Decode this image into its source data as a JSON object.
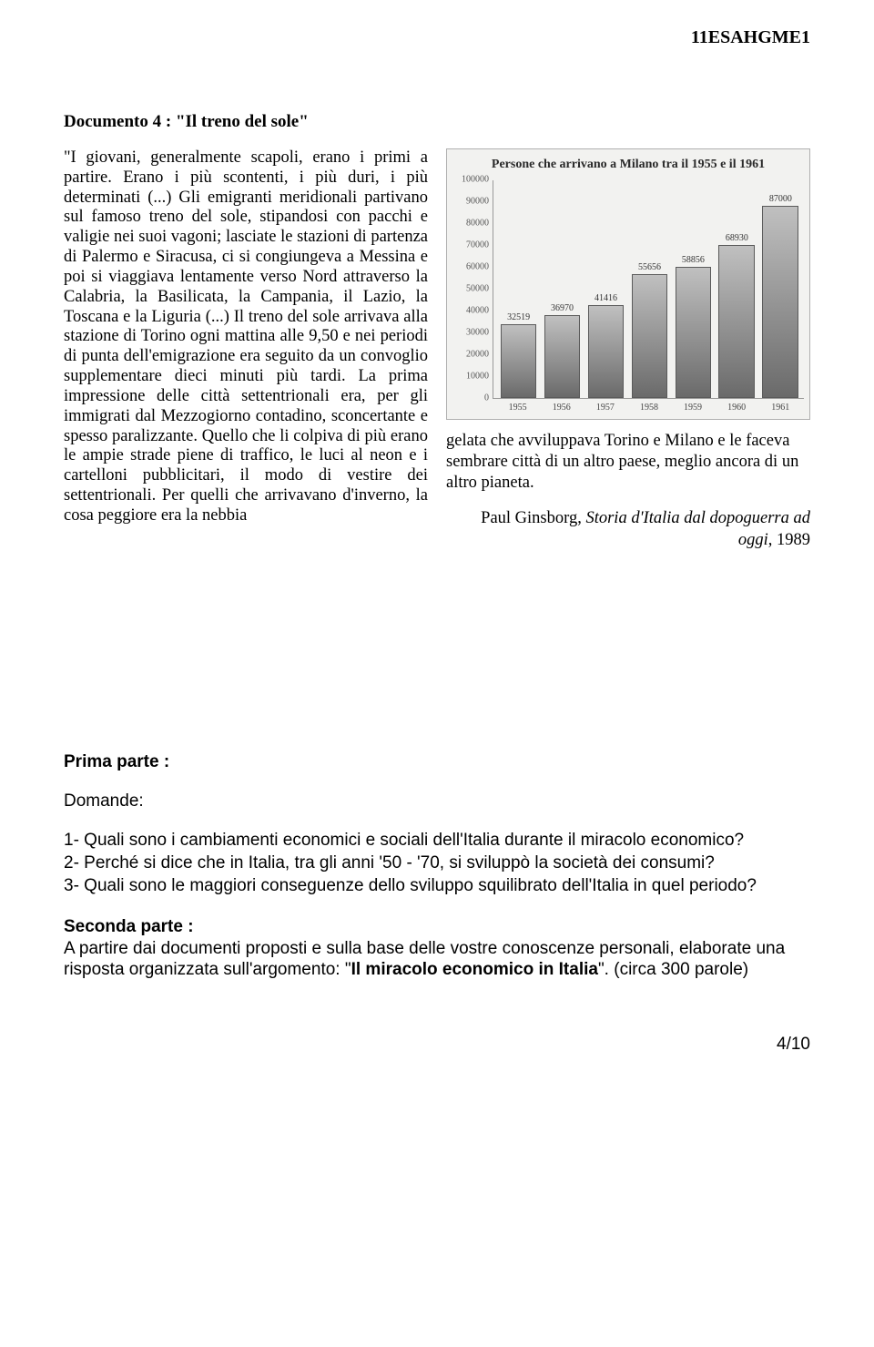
{
  "header_code": "11ESAHGME1",
  "doc_title_prefix": "Documento 4 : ",
  "doc_title_quote": "\"Il treno del sole\"",
  "body_left": "\"I giovani, generalmente scapoli, erano i primi a partire. Erano i più scontenti, i più duri, i più determinati (...) Gli emigranti meridionali partivano sul famoso treno del sole, stipandosi con pacchi e valigie nei suoi vagoni; lasciate le stazioni di partenza di Palermo e Siracusa, ci si congiungeva a Messina e poi si viaggiava lentamente verso Nord attraverso la Calabria, la Basilicata, la Campania, il Lazio, la Toscana e la Liguria (...) Il treno del sole arrivava alla stazione di Torino ogni mattina alle 9,50 e nei periodi di punta dell'emigrazione era seguito da un convoglio supplementare dieci minuti più tardi. La prima impressione delle città settentrionali era, per gli immigrati dal Mezzogiorno contadino, sconcertante e spesso paralizzante. Quello che li colpiva di più erano le ampie strade piene di traffico, le luci al neon e i cartelloni pubblicitari, il modo di vestire dei settentrionali. Per quelli che arrivavano d'inverno, la cosa peggiore era la nebbia",
  "body_right": "gelata che avviluppava Torino e Milano e le faceva sembrare città di un altro paese, meglio ancora di un altro pianeta.",
  "source_author": "Paul Ginsborg, ",
  "source_title": "Storia d'Italia dal dopoguerra ad oggi",
  "source_year": ", 1989",
  "chart": {
    "title": "Persone che arrivano a Milano tra il 1955 e il 1961",
    "ymax": 100000,
    "yticks": [
      0,
      10000,
      20000,
      30000,
      40000,
      50000,
      60000,
      70000,
      80000,
      90000,
      100000
    ],
    "ytick_labels": [
      "0",
      "10000",
      "20000",
      "30000",
      "40000",
      "50000",
      "60000",
      "70000",
      "80000",
      "90000",
      "100000"
    ],
    "categories": [
      "1955",
      "1956",
      "1957",
      "1958",
      "1959",
      "1960",
      "1961"
    ],
    "values": [
      32519,
      36970,
      41416,
      55656,
      58856,
      68930,
      87000
    ],
    "value_labels": [
      "32519",
      "36970",
      "41416",
      "55656",
      "58856",
      "68930",
      "87000"
    ],
    "background_color": "#f2f2f0",
    "bar_fill": "#8d8d8d",
    "axis_color": "#999999",
    "label_fontsize": 10
  },
  "prima": {
    "head": "Prima parte :",
    "dom": "Domande:",
    "q1": "1- Quali sono i cambiamenti economici e sociali dell'Italia durante il miracolo economico?",
    "q2": "2- Perché si dice che in Italia, tra gli anni '50 - '70, si sviluppò la società dei consumi?",
    "q3": "3- Quali sono le maggiori conseguenze dello sviluppo squilibrato dell'Italia in quel periodo?"
  },
  "seconda": {
    "head": "Seconda parte :",
    "body_pre": "A partire dai documenti proposti e sulla base delle vostre conoscenze personali, elaborate una risposta organizzata  sull'argomento: \"",
    "body_bold": "Il miracolo economico in Italia",
    "body_post": "\". (circa 300 parole)"
  },
  "page_num": "4/10"
}
